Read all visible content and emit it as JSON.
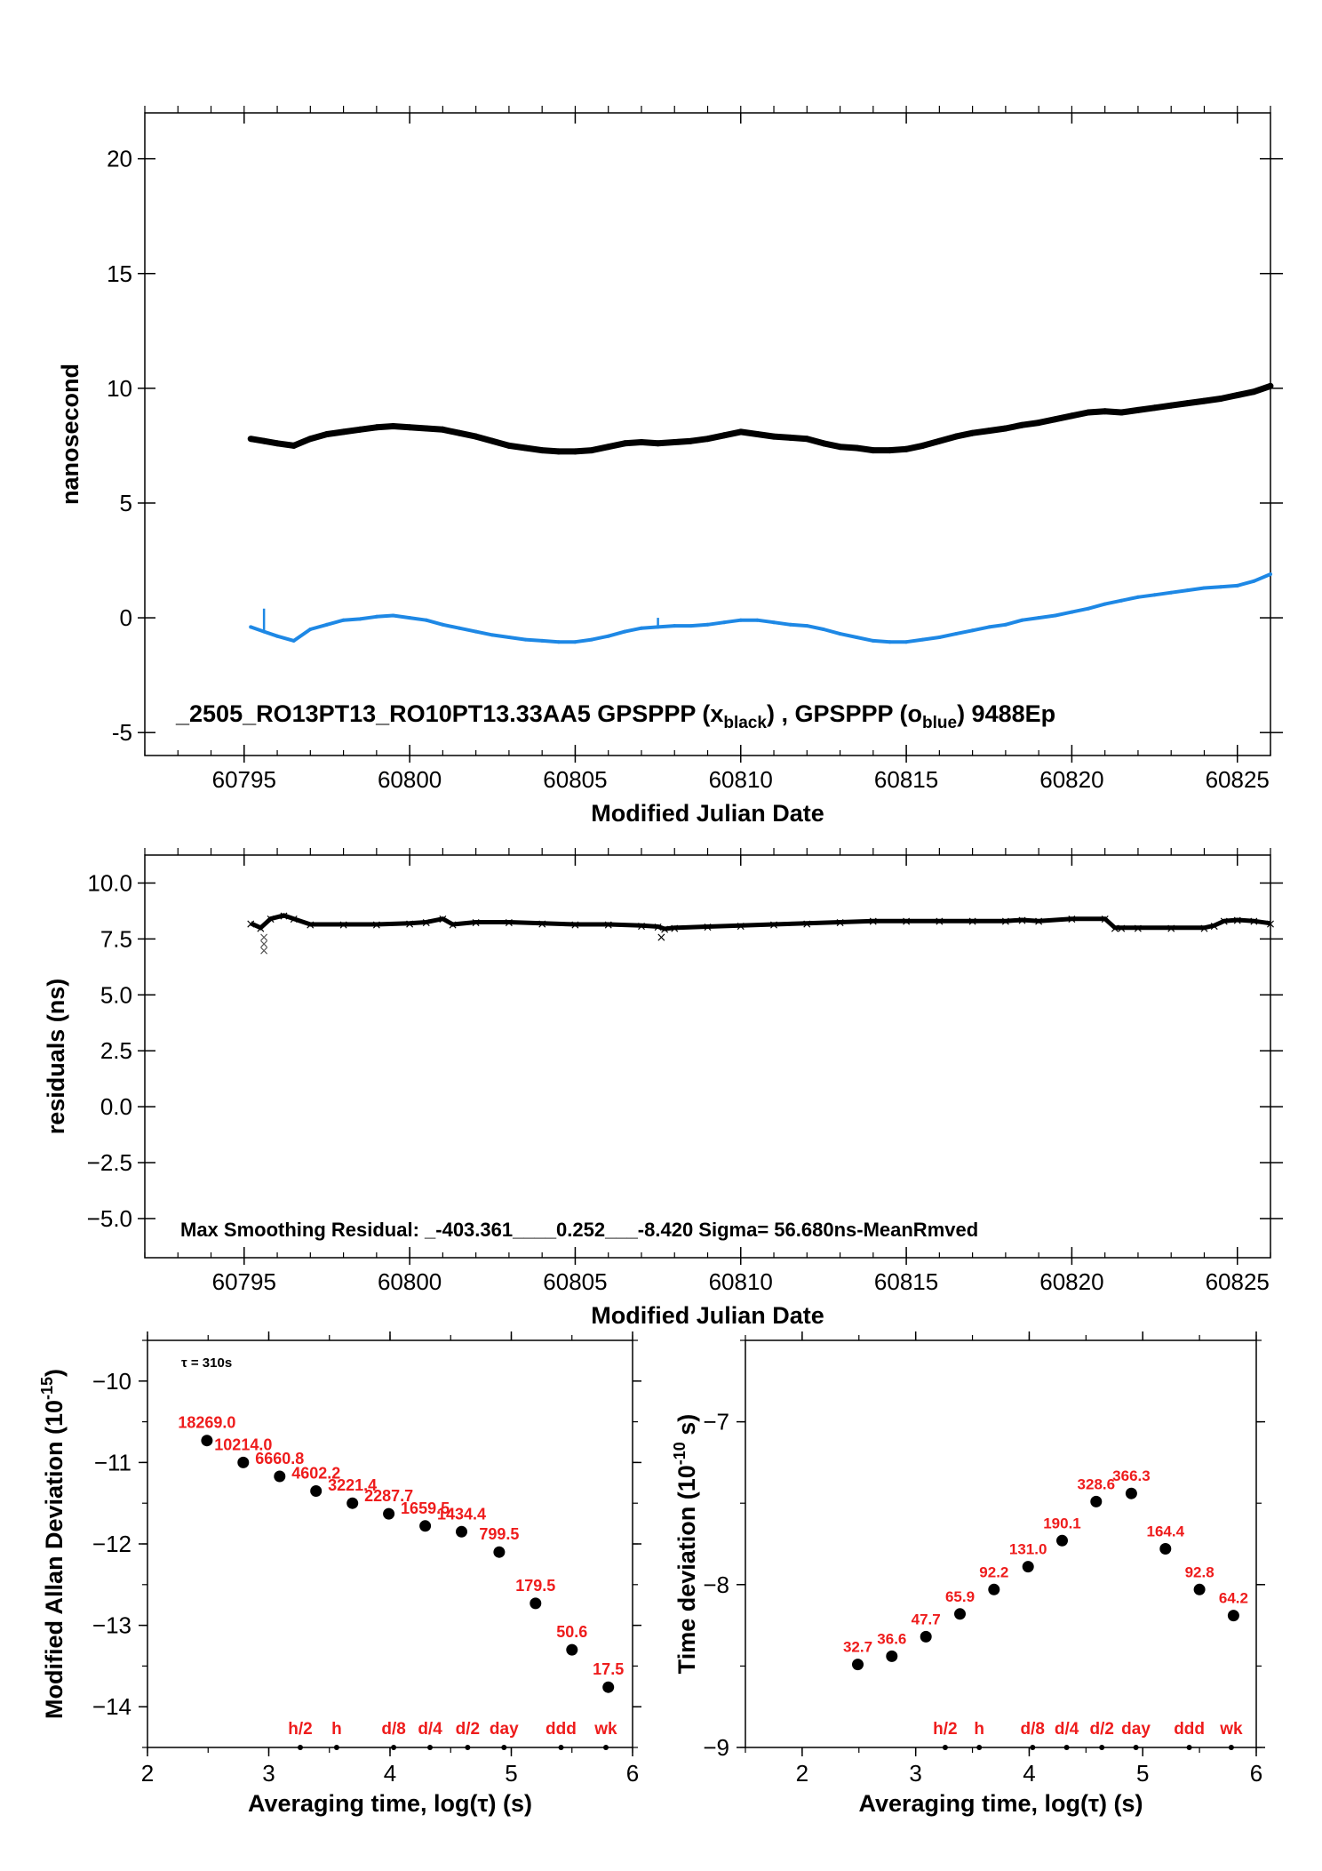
{
  "chart_data": [
    {
      "type": "line",
      "id": "top",
      "title": "_2505_RO13PT13_RO10PT13.33AA5     GPSPPP (x",
      "title_parts": {
        "prefix": "_2505_RO13PT13_RO10PT13.33AA5     GPSPPP (x",
        "sub1": "black",
        "mid": ") ,  GPSPPP (o",
        "sub2": "blue",
        "suffix": ")  9488Ep"
      },
      "xlabel": "Modified Julian Date",
      "ylabel": "nanosecond",
      "xlim": [
        60792,
        60826
      ],
      "ylim": [
        -6,
        22
      ],
      "xticks": [
        60795,
        60800,
        60805,
        60810,
        60815,
        60820,
        60825
      ],
      "yticks": [
        -5,
        0,
        5,
        10,
        15,
        20
      ],
      "series": [
        {
          "color": "#000000",
          "x": [
            60795.2,
            60795.6,
            60796.0,
            60796.5,
            60797.0,
            60797.5,
            60798.0,
            60798.5,
            60799.0,
            60799.5,
            60800.0,
            60800.5,
            60801.0,
            60801.5,
            60802.0,
            60802.5,
            60803.0,
            60803.5,
            60804.0,
            60804.5,
            60805.0,
            60805.5,
            60806.0,
            60806.5,
            60807.0,
            60807.5,
            60808.0,
            60808.5,
            60809.0,
            60809.5,
            60810.0,
            60810.5,
            60811.0,
            60811.5,
            60812.0,
            60812.5,
            60813.0,
            60813.5,
            60814.0,
            60814.5,
            60815.0,
            60815.5,
            60816.0,
            60816.5,
            60817.0,
            60817.5,
            60818.0,
            60818.5,
            60819.0,
            60819.5,
            60820.0,
            60820.5,
            60821.0,
            60821.5,
            60822.0,
            60822.5,
            60823.0,
            60823.5,
            60824.0,
            60824.5,
            60825.0,
            60825.5,
            60826.0
          ],
          "y": [
            7.8,
            7.7,
            7.6,
            7.5,
            7.8,
            8.0,
            8.1,
            8.2,
            8.3,
            8.35,
            8.3,
            8.25,
            8.2,
            8.05,
            7.9,
            7.7,
            7.5,
            7.4,
            7.3,
            7.25,
            7.25,
            7.3,
            7.45,
            7.6,
            7.65,
            7.6,
            7.65,
            7.7,
            7.8,
            7.95,
            8.1,
            8.0,
            7.9,
            7.85,
            7.8,
            7.6,
            7.45,
            7.4,
            7.3,
            7.3,
            7.35,
            7.5,
            7.7,
            7.9,
            8.05,
            8.15,
            8.25,
            8.4,
            8.5,
            8.65,
            8.8,
            8.95,
            9.0,
            8.95,
            9.05,
            9.15,
            9.25,
            9.35,
            9.45,
            9.55,
            9.7,
            9.85,
            10.1
          ]
        },
        {
          "color": "#1e88e5",
          "x": [
            60795.2,
            60795.6,
            60796.0,
            60796.5,
            60797.0,
            60797.5,
            60798.0,
            60798.5,
            60799.0,
            60799.5,
            60800.0,
            60800.5,
            60801.0,
            60801.5,
            60802.0,
            60802.5,
            60803.0,
            60803.5,
            60804.0,
            60804.5,
            60805.0,
            60805.5,
            60806.0,
            60806.5,
            60807.0,
            60807.5,
            60808.0,
            60808.5,
            60809.0,
            60809.5,
            60810.0,
            60810.5,
            60811.0,
            60811.5,
            60812.0,
            60812.5,
            60813.0,
            60813.5,
            60814.0,
            60814.5,
            60815.0,
            60815.5,
            60816.0,
            60816.5,
            60817.0,
            60817.5,
            60818.0,
            60818.5,
            60819.0,
            60819.5,
            60820.0,
            60820.5,
            60821.0,
            60821.5,
            60822.0,
            60822.5,
            60823.0,
            60823.5,
            60824.0,
            60824.5,
            60825.0,
            60825.5,
            60826.0
          ],
          "y": [
            -0.4,
            -0.6,
            -0.8,
            -1.0,
            -0.5,
            -0.3,
            -0.1,
            -0.05,
            0.05,
            0.1,
            0.0,
            -0.1,
            -0.3,
            -0.45,
            -0.6,
            -0.75,
            -0.85,
            -0.95,
            -1.0,
            -1.05,
            -1.05,
            -0.95,
            -0.8,
            -0.6,
            -0.45,
            -0.4,
            -0.35,
            -0.35,
            -0.3,
            -0.2,
            -0.1,
            -0.1,
            -0.2,
            -0.3,
            -0.35,
            -0.5,
            -0.7,
            -0.85,
            -1.0,
            -1.05,
            -1.05,
            -0.95,
            -0.85,
            -0.7,
            -0.55,
            -0.4,
            -0.3,
            -0.1,
            0.0,
            0.1,
            0.25,
            0.4,
            0.6,
            0.75,
            0.9,
            1.0,
            1.1,
            1.2,
            1.3,
            1.35,
            1.4,
            1.6,
            1.9
          ]
        }
      ]
    },
    {
      "type": "scatter",
      "id": "middle",
      "xlabel": "Modified Julian Date",
      "ylabel": "residuals (ns)",
      "annotation": "Max Smoothing Residual: _-403.361____0.252___-8.420  Sigma= 56.680ns-MeanRmved",
      "xlim": [
        60792,
        60826
      ],
      "ylim": [
        -6.75,
        11.25
      ],
      "xticks": [
        60795,
        60800,
        60805,
        60810,
        60815,
        60820,
        60825
      ],
      "yticks": [
        -5.0,
        -2.5,
        0.0,
        2.5,
        5.0,
        7.5,
        10.0
      ],
      "ytick_labels": [
        "−5.0",
        "−2.5",
        "0.0",
        "2.5",
        "5.0",
        "7.5",
        "10.0"
      ],
      "series": [
        {
          "color": "#000000",
          "x": [
            60795.2,
            60795.5,
            60795.8,
            60796.2,
            60796.5,
            60797.0,
            60798.0,
            60799.0,
            60800.0,
            60800.5,
            60801.0,
            60801.3,
            60802.0,
            60803.0,
            60804.0,
            60805.0,
            60806.0,
            60807.0,
            60807.5,
            60807.7,
            60808.0,
            60809.0,
            60810.0,
            60811.0,
            60812.0,
            60813.0,
            60814.0,
            60815.0,
            60816.0,
            60817.0,
            60818.0,
            60818.5,
            60819.0,
            60820.0,
            60821.0,
            60821.3,
            60821.5,
            60822.0,
            60823.0,
            60824.0,
            60824.3,
            60824.6,
            60825.0,
            60825.5,
            60826.0
          ],
          "y": [
            8.2,
            8.0,
            8.4,
            8.55,
            8.4,
            8.15,
            8.15,
            8.15,
            8.2,
            8.25,
            8.4,
            8.15,
            8.25,
            8.25,
            8.2,
            8.15,
            8.15,
            8.1,
            8.05,
            7.95,
            8.0,
            8.05,
            8.1,
            8.15,
            8.2,
            8.25,
            8.3,
            8.3,
            8.3,
            8.3,
            8.3,
            8.35,
            8.3,
            8.4,
            8.4,
            8.0,
            8.0,
            8.0,
            8.0,
            8.0,
            8.1,
            8.3,
            8.35,
            8.3,
            8.2
          ]
        }
      ]
    },
    {
      "type": "scatter",
      "id": "mdev",
      "xlabel": "Averaging time, log(τ) (s)",
      "ylabel": "Modified Allan Deviation (10",
      "ylabel_sup": "-15",
      "ylabel_suffix": ")",
      "tau_note": "τ = 310s",
      "xlim": [
        2,
        6
      ],
      "ylim": [
        -14.5,
        -9.5
      ],
      "xticks": [
        2,
        3,
        4,
        5,
        6
      ],
      "yticks": [
        -14,
        -13,
        -12,
        -11,
        -10
      ],
      "ytick_labels": [
        "−14",
        "−13",
        "−12",
        "−11",
        "−10"
      ],
      "x": [
        2.49,
        2.79,
        3.09,
        3.39,
        3.69,
        3.99,
        4.29,
        4.59,
        4.9,
        5.2,
        5.5,
        5.8
      ],
      "y": [
        -10.73,
        -11.0,
        -11.17,
        -11.35,
        -11.5,
        -11.63,
        -11.78,
        -11.85,
        -12.1,
        -12.73,
        -13.3,
        -13.76
      ],
      "point_labels": [
        "18269.0",
        "10214.0",
        "6660.8",
        "4602.2",
        "3221.4",
        "2287.7",
        "1659.5",
        "1434.4",
        "799.5",
        "179.5",
        "50.6",
        "17.5"
      ],
      "markers": [
        {
          "label": "h/2",
          "x": 3.26
        },
        {
          "label": "h",
          "x": 3.56
        },
        {
          "label": "d/8",
          "x": 4.03
        },
        {
          "label": "d/4",
          "x": 4.33
        },
        {
          "label": "d/2",
          "x": 4.64
        },
        {
          "label": "day",
          "x": 4.94
        },
        {
          "label": "ddd",
          "x": 5.41
        },
        {
          "label": "wk",
          "x": 5.78
        }
      ]
    },
    {
      "type": "scatter",
      "id": "tdev",
      "xlabel": "Averaging time, log(τ) (s)",
      "ylabel": "Time deviation (10",
      "ylabel_sup": "-10",
      "ylabel_suffix": " s)",
      "xlim": [
        1.5,
        6.0
      ],
      "ylim": [
        -9,
        -6.5
      ],
      "xticks": [
        2,
        3,
        4,
        5,
        6
      ],
      "yticks": [
        -9,
        -8,
        -7
      ],
      "ytick_labels": [
        "−9",
        "−8",
        "−7"
      ],
      "x": [
        2.49,
        2.79,
        3.09,
        3.39,
        3.69,
        3.99,
        4.29,
        4.59,
        4.9,
        5.2,
        5.5,
        5.8
      ],
      "y": [
        -8.49,
        -8.44,
        -8.32,
        -8.18,
        -8.03,
        -7.89,
        -7.73,
        -7.49,
        -7.44,
        -7.78,
        -8.03,
        -8.19
      ],
      "point_labels": [
        "32.7",
        "36.6",
        "47.7",
        "65.9",
        "92.2",
        "131.0",
        "190.1",
        "328.6",
        "366.3",
        "164.4",
        "92.8",
        "64.2"
      ],
      "markers": [
        {
          "label": "h/2",
          "x": 3.26
        },
        {
          "label": "h",
          "x": 3.56
        },
        {
          "label": "d/8",
          "x": 4.03
        },
        {
          "label": "d/4",
          "x": 4.33
        },
        {
          "label": "d/2",
          "x": 4.64
        },
        {
          "label": "day",
          "x": 4.94
        },
        {
          "label": "ddd",
          "x": 5.41
        },
        {
          "label": "wk",
          "x": 5.78
        }
      ]
    }
  ]
}
